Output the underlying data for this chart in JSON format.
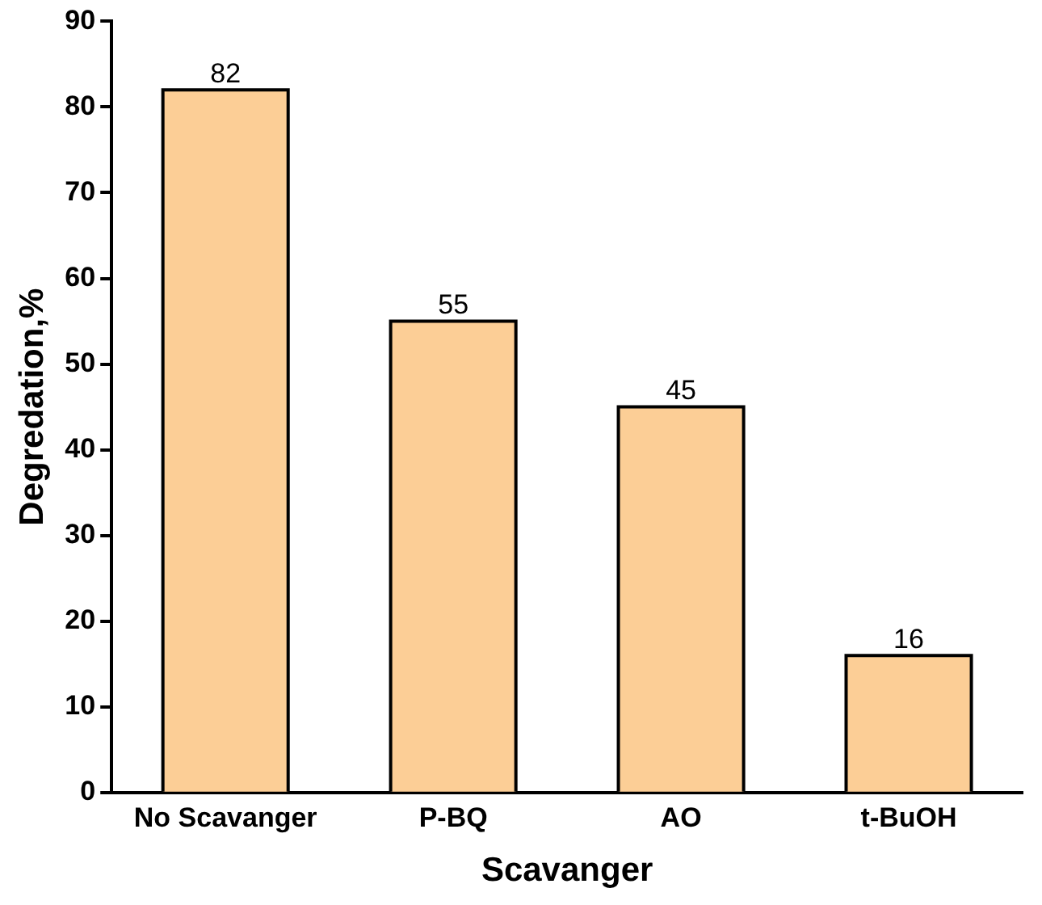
{
  "chart_data": {
    "type": "bar",
    "xlabel": "Scavanger",
    "ylabel": "Degredation,%",
    "categories": [
      "No Scavanger",
      "P-BQ",
      "AO",
      "t-BuOH"
    ],
    "values": [
      82,
      55,
      45,
      16
    ],
    "color": "#fcce96",
    "ylim": [
      0,
      90
    ],
    "yticks": [
      0,
      10,
      20,
      30,
      40,
      50,
      60,
      70,
      80,
      90
    ],
    "data_labels": true,
    "grid": false,
    "legend": false
  }
}
